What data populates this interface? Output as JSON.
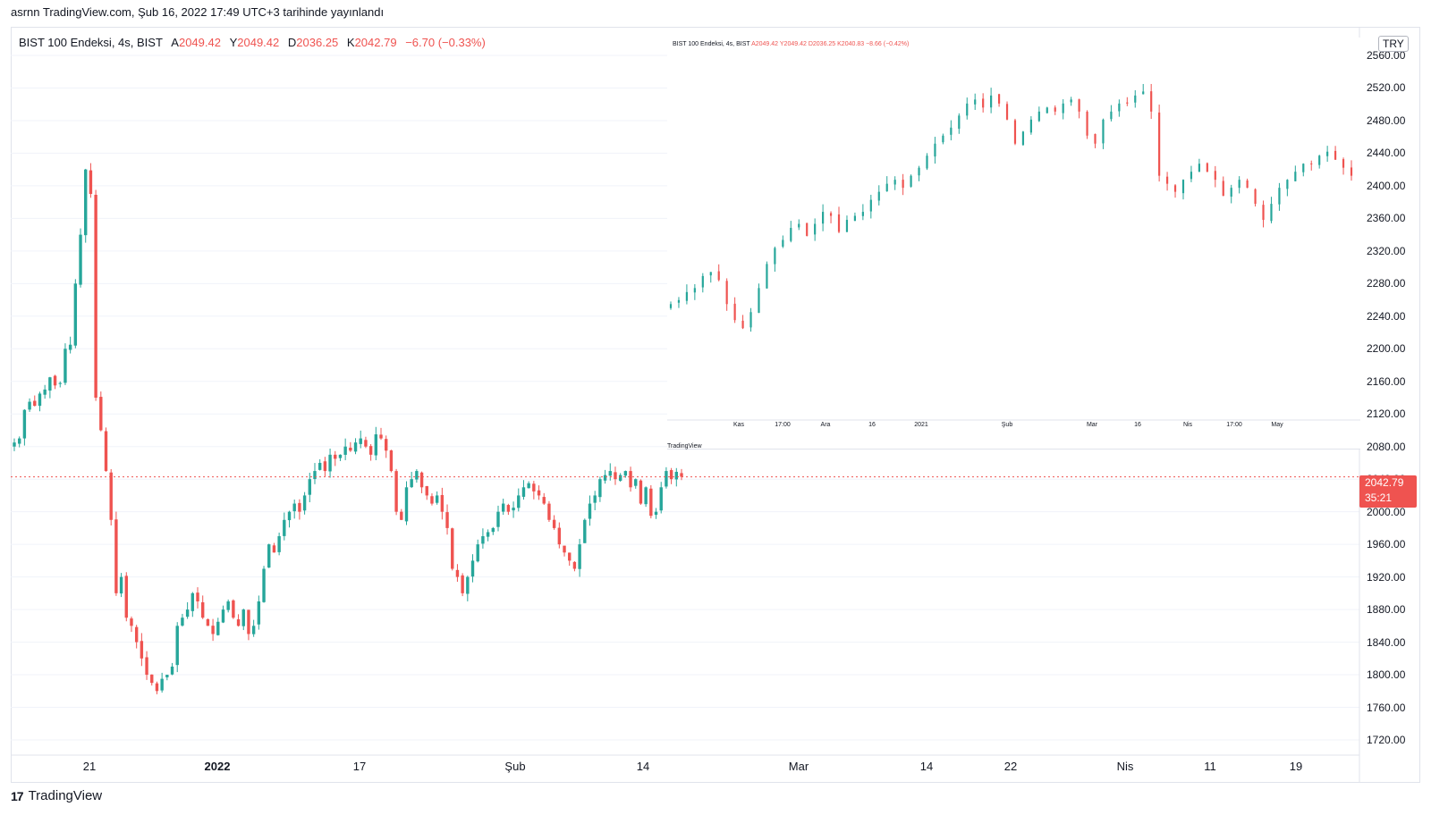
{
  "header": {
    "publish_text": "asrnn TradingView.com, Şub 16, 2022 17:49 UTC+3 tarihinde yayınlandı"
  },
  "legend": {
    "symbol": "BIST 100 Endeksi, 4s, BIST",
    "open_label": "A",
    "open": "2049.42",
    "high_label": "Y",
    "high": "2049.42",
    "low_label": "D",
    "low": "2036.25",
    "close_label": "K",
    "close": "2042.79",
    "change": "−6.70 (−0.33%)"
  },
  "currency": "TRY",
  "price_tag": {
    "price": "2042.79",
    "countdown": "35:21"
  },
  "brand": {
    "logo": "17",
    "name": "TradingView"
  },
  "colors": {
    "up": "#26a69a",
    "down": "#ef5350",
    "grid": "#f0f3fa",
    "price_line": "#ef5350"
  },
  "inset": {
    "legend": {
      "symbol": "BIST 100 Endeksi, 4s, BIST",
      "open": "A2049.42",
      "high": "Y2049.42",
      "low": "D2036.25",
      "close": "K2040.83",
      "change": "−8.66 (−0.42%)"
    },
    "x_labels": [
      "Kas",
      "17:00",
      "Ara",
      "16",
      "2021",
      "Şub",
      "Mar",
      "16",
      "Nis",
      "17:00",
      "May"
    ],
    "watermark": "TradingView"
  },
  "chart_data": [
    {
      "type": "candlestick",
      "title": "BIST 100 Endeksi, 4s, BIST",
      "ylabel": "TRY",
      "ylim": [
        1720,
        2560
      ],
      "y_ticks": [
        2560,
        2520,
        2480,
        2440,
        2400,
        2360,
        2320,
        2280,
        2240,
        2200,
        2160,
        2120,
        2080,
        2040,
        2000,
        1960,
        1920,
        1880,
        1840,
        1800,
        1760,
        1720
      ],
      "y_tick_labels": [
        "2560.00",
        "2520.00",
        "2480.00",
        "2440.00",
        "2400.00",
        "2360.00",
        "2320.00",
        "2280.00",
        "2240.00",
        "2200.00",
        "2160.00",
        "2120.00",
        "2080.00",
        "2040.00",
        "2000.00",
        "1960.00",
        "1920.00",
        "1880.00",
        "1840.00",
        "1800.00",
        "1760.00",
        "1720.00"
      ],
      "x_tick_labels": [
        {
          "label": "21",
          "bold": false
        },
        {
          "label": "2022",
          "bold": true
        },
        {
          "label": "17",
          "bold": false
        },
        {
          "label": "Şub",
          "bold": false
        },
        {
          "label": "14",
          "bold": false
        },
        {
          "label": "Mar",
          "bold": false
        },
        {
          "label": "14",
          "bold": false
        },
        {
          "label": "22",
          "bold": false
        },
        {
          "label": "Nis",
          "bold": false
        },
        {
          "label": "11",
          "bold": false
        },
        {
          "label": "19",
          "bold": false
        }
      ],
      "last_price": 2042.79,
      "closes": [
        2085,
        2090,
        2125,
        2135,
        2130,
        2145,
        2150,
        2165,
        2155,
        2158,
        2200,
        2205,
        2280,
        2340,
        2420,
        2390,
        2140,
        2100,
        2050,
        1990,
        1900,
        1920,
        1870,
        1860,
        1840,
        1820,
        1800,
        1790,
        1780,
        1795,
        1800,
        1810,
        1860,
        1870,
        1880,
        1900,
        1890,
        1870,
        1860,
        1850,
        1865,
        1880,
        1890,
        1870,
        1860,
        1880,
        1850,
        1860,
        1890,
        1930,
        1960,
        1950,
        1970,
        1990,
        2000,
        2010,
        2000,
        2020,
        2040,
        2050,
        2060,
        2050,
        2070,
        2065,
        2070,
        2080,
        2075,
        2085,
        2090,
        2080,
        2070,
        2095,
        2090,
        2075,
        2050,
        2000,
        1990,
        2030,
        2040,
        2050,
        2030,
        2020,
        2010,
        2020,
        2000,
        1980,
        1930,
        1920,
        1900,
        1920,
        1940,
        1960,
        1970,
        1975,
        1980,
        2000,
        2010,
        2000,
        2005,
        2020,
        2030,
        2035,
        2025,
        2020,
        2010,
        1990,
        1980,
        1960,
        1950,
        1940,
        1930,
        1960,
        1990,
        2010,
        2020,
        2040,
        2045,
        2050,
        2040,
        2045,
        2050,
        2030,
        2040,
        2010,
        2030,
        1995,
        2000,
        2030,
        2050,
        2040,
        2049,
        2043
      ]
    },
    {
      "type": "candlestick",
      "title": "BIST 100 Endeksi, 4s, BIST",
      "ylim": [
        2100,
        2540
      ],
      "x_tick_labels": [
        "Kas",
        "17:00",
        "Ara",
        "16",
        "2021",
        "Şub",
        "Mar",
        "16",
        "Nis",
        "17:00",
        "May"
      ],
      "closes": [
        2230,
        2235,
        2245,
        2250,
        2265,
        2270,
        2260,
        2230,
        2210,
        2200,
        2220,
        2250,
        2280,
        2300,
        2310,
        2325,
        2330,
        2315,
        2330,
        2345,
        2340,
        2320,
        2335,
        2340,
        2345,
        2360,
        2370,
        2380,
        2385,
        2375,
        2390,
        2400,
        2415,
        2430,
        2440,
        2450,
        2465,
        2480,
        2485,
        2475,
        2490,
        2480,
        2460,
        2430,
        2445,
        2460,
        2470,
        2475,
        2470,
        2480,
        2485,
        2470,
        2440,
        2430,
        2460,
        2470,
        2480,
        2480,
        2490,
        2495,
        2470,
        2390,
        2380,
        2370,
        2385,
        2395,
        2405,
        2395,
        2385,
        2365,
        2375,
        2385,
        2375,
        2355,
        2335,
        2355,
        2375,
        2385,
        2395,
        2405,
        2405,
        2415,
        2420,
        2410,
        2400,
        2390
      ]
    }
  ]
}
